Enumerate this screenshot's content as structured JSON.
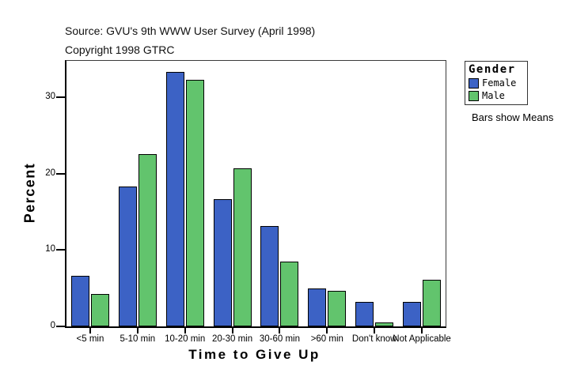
{
  "header": {
    "source": "Source: GVU's 9th WWW User Survey (April 1998)",
    "copyright": "Copyright 1998 GTRC"
  },
  "legend": {
    "title": "Gender",
    "items": [
      {
        "label": "Female",
        "color": "#3c62c5"
      },
      {
        "label": "Male",
        "color": "#62c46d"
      }
    ],
    "note": "Bars show Means"
  },
  "chart_data": {
    "type": "bar",
    "title": "",
    "xlabel": "Time to Give Up",
    "ylabel": "Percent",
    "categories": [
      "<5 min",
      "5-10 min",
      "10-20 min",
      "20-30 min",
      "30-60 min",
      ">60 min",
      "Don't know",
      "Not Applicable"
    ],
    "series": [
      {
        "name": "Female",
        "color": "#3c62c5",
        "values": [
          6.6,
          18.3,
          33.4,
          16.7,
          13.2,
          5.0,
          3.2,
          3.2
        ]
      },
      {
        "name": "Male",
        "color": "#62c46d",
        "values": [
          4.2,
          22.6,
          32.3,
          20.7,
          8.5,
          4.7,
          0.5,
          6.1
        ]
      }
    ],
    "ylim": [
      0,
      34.8
    ],
    "yticks": [
      0,
      10,
      20,
      30
    ],
    "grid": false,
    "legend_position": "right",
    "bar_outline_color": "#000000"
  }
}
